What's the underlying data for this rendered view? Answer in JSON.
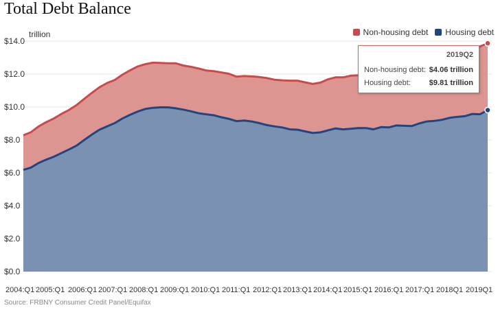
{
  "title": "Total Debt Balance",
  "unit_label": "trillion",
  "source": "Source: FRBNY Consumer Credit Panel/Equifax",
  "colors": {
    "non_housing": "#c84b4b",
    "non_housing_fill": "#dc9591",
    "housing": "#1f4680",
    "housing_fill": "#7a91b2"
  },
  "legend": [
    {
      "label": "Non-housing debt",
      "color": "#c84b4b"
    },
    {
      "label": "Housing debt",
      "color": "#1f4680"
    }
  ],
  "tooltip": {
    "date": "2019Q2",
    "rows": [
      {
        "label": "Non-housing debt:",
        "value": "$4.06 trillion"
      },
      {
        "label": "Housing debt:",
        "value": "$9.81 trillion"
      }
    ]
  },
  "chart_data": {
    "type": "area",
    "stacked": true,
    "title": "Total Debt Balance",
    "ylabel": "trillion",
    "ylim": [
      0,
      14
    ],
    "yticks": [
      "$0.0",
      "$2.0",
      "$4.0",
      "$6.0",
      "$8.0",
      "$10.0",
      "$12.0",
      "$14.0"
    ],
    "xticks": [
      "2004:Q1",
      "2005:Q1",
      "2006:Q1",
      "2007:Q1",
      "2008:Q1",
      "2009:Q1",
      "2010:Q1",
      "2011:Q1",
      "2012:Q1",
      "2013:Q1",
      "2014:Q1",
      "2015:Q1",
      "2016:Q1",
      "2017:Q1",
      "2018Q1",
      "2019Q1"
    ],
    "x": [
      "2004Q1",
      "2004Q2",
      "2004Q3",
      "2004Q4",
      "2005Q1",
      "2005Q2",
      "2005Q3",
      "2005Q4",
      "2006Q1",
      "2006Q2",
      "2006Q3",
      "2006Q4",
      "2007Q1",
      "2007Q2",
      "2007Q3",
      "2007Q4",
      "2008Q1",
      "2008Q2",
      "2008Q3",
      "2008Q4",
      "2009Q1",
      "2009Q2",
      "2009Q3",
      "2009Q4",
      "2010Q1",
      "2010Q2",
      "2010Q3",
      "2010Q4",
      "2011Q1",
      "2011Q2",
      "2011Q3",
      "2011Q4",
      "2012Q1",
      "2012Q2",
      "2012Q3",
      "2012Q4",
      "2013Q1",
      "2013Q2",
      "2013Q3",
      "2013Q4",
      "2014Q1",
      "2014Q2",
      "2014Q3",
      "2014Q4",
      "2015Q1",
      "2015Q2",
      "2015Q3",
      "2015Q4",
      "2016Q1",
      "2016Q2",
      "2016Q3",
      "2016Q4",
      "2017Q1",
      "2017Q2",
      "2017Q3",
      "2017Q4",
      "2018Q1",
      "2018Q2",
      "2018Q3",
      "2018Q4",
      "2019Q1",
      "2019Q2"
    ],
    "series": [
      {
        "name": "Housing debt",
        "values": [
          6.18,
          6.32,
          6.6,
          6.8,
          6.98,
          7.2,
          7.42,
          7.66,
          8.0,
          8.32,
          8.62,
          8.82,
          9.02,
          9.3,
          9.52,
          9.72,
          9.88,
          9.95,
          9.98,
          9.98,
          9.92,
          9.84,
          9.74,
          9.62,
          9.56,
          9.5,
          9.38,
          9.28,
          9.14,
          9.18,
          9.12,
          9.02,
          8.9,
          8.82,
          8.76,
          8.64,
          8.62,
          8.52,
          8.42,
          8.46,
          8.58,
          8.7,
          8.64,
          8.68,
          8.72,
          8.72,
          8.64,
          8.78,
          8.76,
          8.88,
          8.86,
          8.84,
          9.0,
          9.12,
          9.16,
          9.22,
          9.34,
          9.4,
          9.44,
          9.58,
          9.56,
          9.81
        ]
      },
      {
        "name": "Non-housing debt",
        "values": [
          2.1,
          2.15,
          2.22,
          2.28,
          2.32,
          2.38,
          2.4,
          2.46,
          2.5,
          2.54,
          2.58,
          2.64,
          2.62,
          2.66,
          2.7,
          2.74,
          2.72,
          2.74,
          2.7,
          2.68,
          2.74,
          2.68,
          2.7,
          2.72,
          2.66,
          2.68,
          2.72,
          2.74,
          2.7,
          2.7,
          2.74,
          2.8,
          2.86,
          2.84,
          2.86,
          2.96,
          2.98,
          2.98,
          2.98,
          3.02,
          3.1,
          3.1,
          3.16,
          3.22,
          3.2,
          3.28,
          3.36,
          3.38,
          3.48,
          3.56,
          3.64,
          3.72,
          3.8,
          3.8,
          3.9,
          3.96,
          3.88,
          4.0,
          4.06,
          4.06,
          4.12,
          4.06
        ]
      }
    ],
    "grid": true,
    "legend": "top-right"
  }
}
